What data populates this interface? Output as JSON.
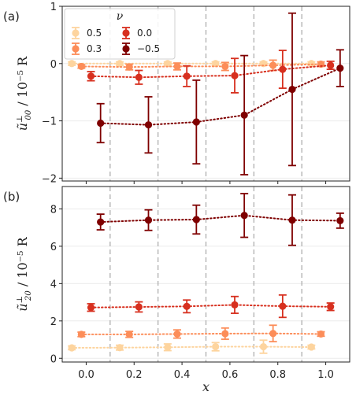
{
  "panels": [
    {
      "label": "(a)",
      "ylabel": "ũ⊥00 / 10⁻⁵ R",
      "ylabel_parts": {
        "symbol": "ũ",
        "sup": "⊥",
        "sub": "00",
        "rest": " / 10⁻⁵ R"
      }
    },
    {
      "label": "(b)",
      "ylabel": "ũ⊥20 / 10⁻⁵ R",
      "ylabel_parts": {
        "symbol": "ũ",
        "sup": "⊥",
        "sub": "20",
        "rest": " / 10⁻⁵ R"
      }
    }
  ],
  "xlabel": "x",
  "legend": {
    "title": "ν",
    "placement": "top-left of panel (a)",
    "entries": [
      {
        "label": "0.5",
        "color": "#fdd49e"
      },
      {
        "label": "0.3",
        "color": "#fc8d59"
      },
      {
        "label": "0.0",
        "color": "#d7301f"
      },
      {
        "label": "−0.5",
        "color": "#7f0000"
      }
    ]
  },
  "chart_data": [
    {
      "type": "scatter",
      "panel": "(a)",
      "xlabel": "x",
      "ylabel": "ũ⊥00 / 10⁻⁵ R",
      "xlim": [
        -0.1,
        1.1
      ],
      "ylim": [
        -2.05,
        1.0
      ],
      "xticks": [
        0.0,
        0.2,
        0.4,
        0.6,
        0.8,
        1.0
      ],
      "xtick_labels": [
        "0.0",
        "0.2",
        "0.4",
        "0.6",
        "0.8",
        "1.0"
      ],
      "yticks": [
        -2,
        -1,
        0,
        1
      ],
      "ytick_labels": [
        "−2",
        "−1",
        "0",
        "1"
      ],
      "vertical_dashed_lines": [
        0.1,
        0.3,
        0.5,
        0.7,
        0.9
      ],
      "grid": "horizontal",
      "series": [
        {
          "name": "0.5",
          "color": "#fdd49e",
          "x": [
            -0.06,
            0.14,
            0.34,
            0.54,
            0.74,
            0.94
          ],
          "y": [
            0.0,
            0.0,
            0.0,
            0.0,
            0.0,
            0.0
          ],
          "yerr": [
            0.03,
            0.03,
            0.03,
            0.03,
            0.03,
            0.03
          ]
        },
        {
          "name": "0.3",
          "color": "#fc8d59",
          "x": [
            -0.02,
            0.18,
            0.38,
            0.58,
            0.78,
            0.98
          ],
          "y": [
            -0.05,
            -0.06,
            -0.05,
            -0.05,
            -0.03,
            -0.01
          ],
          "yerr": [
            0.03,
            0.05,
            0.06,
            0.07,
            0.09,
            0.04
          ]
        },
        {
          "name": "0.0",
          "color": "#d7301f",
          "x": [
            0.02,
            0.22,
            0.42,
            0.62,
            0.82,
            1.02
          ],
          "y": [
            -0.22,
            -0.24,
            -0.22,
            -0.21,
            -0.1,
            -0.03
          ],
          "yerr": [
            0.08,
            0.12,
            0.18,
            0.3,
            0.33,
            0.07
          ]
        },
        {
          "name": "−0.5",
          "color": "#7f0000",
          "x": [
            0.06,
            0.26,
            0.46,
            0.66,
            0.86,
            1.06
          ],
          "y": [
            -1.04,
            -1.07,
            -1.02,
            -0.9,
            -0.45,
            -0.08
          ],
          "yerr": [
            0.34,
            0.49,
            0.73,
            1.04,
            1.33,
            0.32
          ]
        }
      ]
    },
    {
      "type": "scatter",
      "panel": "(b)",
      "xlabel": "x",
      "ylabel": "ũ⊥20 / 10⁻⁵ R",
      "xlim": [
        -0.1,
        1.1
      ],
      "ylim": [
        -0.2,
        9.2
      ],
      "xticks": [
        0.0,
        0.2,
        0.4,
        0.6,
        0.8,
        1.0
      ],
      "xtick_labels": [
        "0.0",
        "0.2",
        "0.4",
        "0.6",
        "0.8",
        "1.0"
      ],
      "yticks": [
        0,
        2,
        4,
        6,
        8
      ],
      "ytick_labels": [
        "0",
        "2",
        "4",
        "6",
        "8"
      ],
      "vertical_dashed_lines": [
        0.1,
        0.3,
        0.5,
        0.7,
        0.9
      ],
      "grid": "horizontal",
      "series": [
        {
          "name": "0.5",
          "color": "#fdd49e",
          "x": [
            -0.06,
            0.14,
            0.34,
            0.54,
            0.74,
            0.94
          ],
          "y": [
            0.56,
            0.57,
            0.59,
            0.62,
            0.62,
            0.6
          ],
          "yerr": [
            0.1,
            0.13,
            0.18,
            0.22,
            0.35,
            0.1
          ]
        },
        {
          "name": "0.3",
          "color": "#fc8d59",
          "x": [
            -0.02,
            0.18,
            0.38,
            0.58,
            0.78,
            0.98
          ],
          "y": [
            1.28,
            1.28,
            1.3,
            1.32,
            1.33,
            1.3
          ],
          "yerr": [
            0.12,
            0.16,
            0.22,
            0.3,
            0.44,
            0.12
          ]
        },
        {
          "name": "0.0",
          "color": "#d7301f",
          "x": [
            0.02,
            0.22,
            0.42,
            0.62,
            0.82,
            1.02
          ],
          "y": [
            2.72,
            2.75,
            2.78,
            2.86,
            2.79,
            2.76
          ],
          "yerr": [
            0.2,
            0.27,
            0.34,
            0.45,
            0.6,
            0.2
          ]
        },
        {
          "name": "−0.5",
          "color": "#7f0000",
          "x": [
            0.06,
            0.26,
            0.46,
            0.66,
            0.86,
            1.06
          ],
          "y": [
            7.3,
            7.4,
            7.43,
            7.65,
            7.4,
            7.37
          ],
          "yerr": [
            0.42,
            0.55,
            0.77,
            1.17,
            1.35,
            0.4
          ]
        }
      ]
    }
  ]
}
